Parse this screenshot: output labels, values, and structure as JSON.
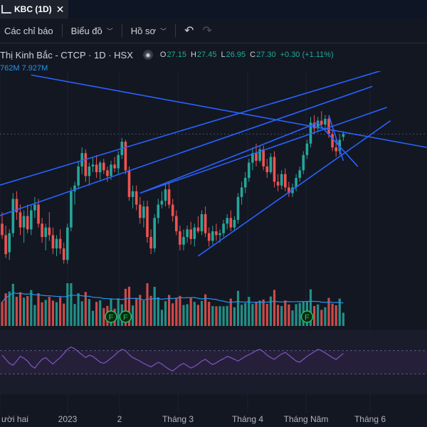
{
  "tab": {
    "title": "KBC (1D)",
    "close_icon": "close-icon"
  },
  "toolbar": {
    "indicators_label": "Các chỉ báo",
    "chart_label": "Biểu đồ",
    "profile_label": "Hồ sơ",
    "undo_icon": "undo-icon",
    "redo_icon": "redo-icon"
  },
  "legend": {
    "symbol": "Thị Kinh Bắc - CTCP · 1D · HSX",
    "o_label": "O",
    "o": "27.15",
    "h_label": "H",
    "h": "27.45",
    "l_label": "L",
    "l": "26.95",
    "c_label": "C",
    "c": "27.30",
    "change": "+0.30 (+1.11%)"
  },
  "volume_legend": {
    "v1": "762M",
    "v2": "7.927M"
  },
  "colors": {
    "background": "#131722",
    "up": "#26a69a",
    "down": "#ef5350",
    "trendline": "#2962ff",
    "rsi": "#7e57c2",
    "volume_ma": "#2196f3"
  },
  "chart_data": {
    "type": "candlestick",
    "symbol": "KBC",
    "x_tick_labels": [
      "ười hai",
      "2023",
      "2",
      "Tháng 3",
      "Tháng 4",
      "Tháng Năm",
      "Tháng 6"
    ],
    "y_range": [
      19.4,
      30.6
    ],
    "candles": [
      {
        "o": 22.6,
        "h": 23.2,
        "l": 21.8,
        "c": 22.0
      },
      {
        "o": 22.0,
        "h": 22.5,
        "l": 20.8,
        "c": 21.0
      },
      {
        "o": 21.1,
        "h": 22.3,
        "l": 20.7,
        "c": 22.1
      },
      {
        "o": 22.1,
        "h": 24.2,
        "l": 21.9,
        "c": 23.9
      },
      {
        "o": 23.9,
        "h": 24.3,
        "l": 22.8,
        "c": 23.2
      },
      {
        "o": 23.2,
        "h": 23.6,
        "l": 22.0,
        "c": 22.4
      },
      {
        "o": 22.4,
        "h": 23.3,
        "l": 21.6,
        "c": 23.0
      },
      {
        "o": 23.0,
        "h": 23.6,
        "l": 22.1,
        "c": 22.3
      },
      {
        "o": 22.3,
        "h": 23.6,
        "l": 22.0,
        "c": 23.3
      },
      {
        "o": 23.3,
        "h": 24.0,
        "l": 22.9,
        "c": 23.6
      },
      {
        "o": 23.6,
        "h": 23.9,
        "l": 22.4,
        "c": 22.6
      },
      {
        "o": 22.6,
        "h": 22.9,
        "l": 21.6,
        "c": 21.9
      },
      {
        "o": 21.9,
        "h": 22.6,
        "l": 21.2,
        "c": 22.4
      },
      {
        "o": 22.4,
        "h": 23.2,
        "l": 21.7,
        "c": 22.0
      },
      {
        "o": 22.0,
        "h": 22.4,
        "l": 21.0,
        "c": 21.3
      },
      {
        "o": 21.3,
        "h": 22.0,
        "l": 20.9,
        "c": 21.8
      },
      {
        "o": 21.8,
        "h": 22.3,
        "l": 21.0,
        "c": 21.3
      },
      {
        "o": 21.3,
        "h": 21.6,
        "l": 20.5,
        "c": 20.7
      },
      {
        "o": 20.7,
        "h": 22.6,
        "l": 20.5,
        "c": 22.4
      },
      {
        "o": 22.4,
        "h": 24.5,
        "l": 22.2,
        "c": 24.3
      },
      {
        "o": 24.3,
        "h": 24.8,
        "l": 23.6,
        "c": 24.6
      },
      {
        "o": 24.6,
        "h": 25.9,
        "l": 24.4,
        "c": 25.6
      },
      {
        "o": 25.6,
        "h": 26.6,
        "l": 25.2,
        "c": 26.3
      },
      {
        "o": 26.3,
        "h": 26.5,
        "l": 24.8,
        "c": 25.1
      },
      {
        "o": 25.1,
        "h": 25.8,
        "l": 24.6,
        "c": 25.6
      },
      {
        "o": 25.6,
        "h": 26.1,
        "l": 25.3,
        "c": 25.7
      },
      {
        "o": 25.7,
        "h": 26.2,
        "l": 25.0,
        "c": 25.3
      },
      {
        "o": 25.3,
        "h": 25.9,
        "l": 24.9,
        "c": 25.8
      },
      {
        "o": 25.8,
        "h": 26.0,
        "l": 25.2,
        "c": 25.4
      },
      {
        "o": 25.4,
        "h": 25.6,
        "l": 24.8,
        "c": 25.1
      },
      {
        "o": 25.1,
        "h": 25.9,
        "l": 24.9,
        "c": 25.7
      },
      {
        "o": 25.7,
        "h": 26.1,
        "l": 25.3,
        "c": 25.5
      },
      {
        "o": 25.5,
        "h": 26.4,
        "l": 25.2,
        "c": 26.2
      },
      {
        "o": 26.2,
        "h": 27.1,
        "l": 26.0,
        "c": 26.9
      },
      {
        "o": 26.9,
        "h": 27.0,
        "l": 25.2,
        "c": 25.4
      },
      {
        "o": 25.4,
        "h": 25.6,
        "l": 23.8,
        "c": 24.0
      },
      {
        "o": 24.0,
        "h": 24.6,
        "l": 23.4,
        "c": 24.3
      },
      {
        "o": 24.3,
        "h": 24.6,
        "l": 23.3,
        "c": 23.6
      },
      {
        "o": 23.6,
        "h": 24.0,
        "l": 22.6,
        "c": 22.9
      },
      {
        "o": 22.9,
        "h": 23.8,
        "l": 22.4,
        "c": 23.5
      },
      {
        "o": 23.5,
        "h": 23.8,
        "l": 21.6,
        "c": 21.9
      },
      {
        "o": 21.9,
        "h": 22.3,
        "l": 21.0,
        "c": 21.3
      },
      {
        "o": 21.3,
        "h": 23.1,
        "l": 21.1,
        "c": 22.9
      },
      {
        "o": 22.9,
        "h": 23.9,
        "l": 22.6,
        "c": 23.6
      },
      {
        "o": 23.6,
        "h": 24.3,
        "l": 23.4,
        "c": 23.8
      },
      {
        "o": 23.8,
        "h": 24.7,
        "l": 23.5,
        "c": 24.4
      },
      {
        "o": 24.4,
        "h": 24.8,
        "l": 23.4,
        "c": 23.6
      },
      {
        "o": 23.6,
        "h": 23.9,
        "l": 22.7,
        "c": 23.0
      },
      {
        "o": 23.0,
        "h": 23.3,
        "l": 22.0,
        "c": 22.2
      },
      {
        "o": 22.2,
        "h": 22.5,
        "l": 21.2,
        "c": 21.5
      },
      {
        "o": 21.5,
        "h": 22.3,
        "l": 21.2,
        "c": 21.9
      },
      {
        "o": 21.9,
        "h": 22.5,
        "l": 21.6,
        "c": 22.3
      },
      {
        "o": 22.3,
        "h": 22.7,
        "l": 21.5,
        "c": 21.8
      },
      {
        "o": 21.8,
        "h": 22.6,
        "l": 21.4,
        "c": 22.4
      },
      {
        "o": 22.4,
        "h": 23.0,
        "l": 22.1,
        "c": 22.2
      },
      {
        "o": 22.2,
        "h": 23.3,
        "l": 22.0,
        "c": 23.1
      },
      {
        "o": 23.1,
        "h": 23.5,
        "l": 21.9,
        "c": 22.1
      },
      {
        "o": 22.1,
        "h": 22.4,
        "l": 21.4,
        "c": 21.7
      },
      {
        "o": 21.7,
        "h": 22.5,
        "l": 21.5,
        "c": 22.2
      },
      {
        "o": 22.2,
        "h": 22.6,
        "l": 21.7,
        "c": 22.0
      },
      {
        "o": 22.0,
        "h": 22.3,
        "l": 21.6,
        "c": 22.1
      },
      {
        "o": 22.1,
        "h": 22.8,
        "l": 21.9,
        "c": 22.6
      },
      {
        "o": 22.6,
        "h": 23.1,
        "l": 22.3,
        "c": 22.9
      },
      {
        "o": 22.9,
        "h": 23.3,
        "l": 22.2,
        "c": 22.4
      },
      {
        "o": 22.4,
        "h": 23.0,
        "l": 22.2,
        "c": 22.8
      },
      {
        "o": 22.8,
        "h": 24.2,
        "l": 22.6,
        "c": 24.0
      },
      {
        "o": 24.0,
        "h": 24.8,
        "l": 23.6,
        "c": 24.5
      },
      {
        "o": 24.5,
        "h": 25.3,
        "l": 24.2,
        "c": 25.0
      },
      {
        "o": 25.0,
        "h": 26.0,
        "l": 24.8,
        "c": 25.8
      },
      {
        "o": 25.8,
        "h": 26.6,
        "l": 25.4,
        "c": 26.3
      },
      {
        "o": 26.3,
        "h": 26.8,
        "l": 25.6,
        "c": 25.9
      },
      {
        "o": 25.9,
        "h": 26.7,
        "l": 25.8,
        "c": 26.5
      },
      {
        "o": 26.5,
        "h": 26.7,
        "l": 25.4,
        "c": 25.6
      },
      {
        "o": 25.6,
        "h": 26.0,
        "l": 25.0,
        "c": 25.3
      },
      {
        "o": 25.3,
        "h": 26.3,
        "l": 25.2,
        "c": 26.1
      },
      {
        "o": 26.1,
        "h": 26.4,
        "l": 24.5,
        "c": 24.8
      },
      {
        "o": 24.8,
        "h": 25.2,
        "l": 24.3,
        "c": 24.6
      },
      {
        "o": 24.6,
        "h": 25.4,
        "l": 24.4,
        "c": 25.2
      },
      {
        "o": 25.2,
        "h": 25.5,
        "l": 24.3,
        "c": 24.5
      },
      {
        "o": 24.5,
        "h": 24.8,
        "l": 24.0,
        "c": 24.2
      },
      {
        "o": 24.2,
        "h": 24.7,
        "l": 24.0,
        "c": 24.5
      },
      {
        "o": 24.5,
        "h": 25.2,
        "l": 24.3,
        "c": 25.0
      },
      {
        "o": 25.0,
        "h": 25.6,
        "l": 24.8,
        "c": 25.4
      },
      {
        "o": 25.4,
        "h": 26.4,
        "l": 25.2,
        "c": 26.2
      },
      {
        "o": 26.2,
        "h": 27.0,
        "l": 26.0,
        "c": 26.8
      },
      {
        "o": 26.8,
        "h": 28.2,
        "l": 26.6,
        "c": 27.9
      },
      {
        "o": 27.9,
        "h": 28.3,
        "l": 27.3,
        "c": 27.6
      },
      {
        "o": 27.6,
        "h": 28.2,
        "l": 27.4,
        "c": 28.0
      },
      {
        "o": 28.0,
        "h": 28.5,
        "l": 27.6,
        "c": 27.8
      },
      {
        "o": 27.8,
        "h": 28.3,
        "l": 27.5,
        "c": 28.1
      },
      {
        "o": 28.1,
        "h": 28.2,
        "l": 27.1,
        "c": 27.3
      },
      {
        "o": 27.3,
        "h": 27.5,
        "l": 26.4,
        "c": 26.6
      },
      {
        "o": 26.6,
        "h": 27.1,
        "l": 26.1,
        "c": 26.4
      },
      {
        "o": 26.4,
        "h": 27.3,
        "l": 26.2,
        "c": 27.0
      },
      {
        "o": 27.15,
        "h": 27.45,
        "l": 26.95,
        "c": 27.3
      }
    ],
    "volume_ma_label": "7.927M",
    "rsi_band": [
      30,
      70
    ],
    "rsi_values": [
      62,
      55,
      48,
      45,
      52,
      60,
      57,
      52,
      44,
      40,
      48,
      55,
      58,
      52,
      47,
      53,
      58,
      65,
      72,
      76,
      73,
      68,
      63,
      58,
      62,
      60,
      55,
      50,
      48,
      52,
      57,
      62,
      68,
      72,
      70,
      63,
      58,
      55,
      52,
      48,
      45,
      42,
      46,
      50,
      47,
      42,
      38,
      35,
      40,
      45,
      48,
      44,
      40,
      43,
      47,
      52,
      55,
      50,
      46,
      49,
      53,
      56,
      60,
      58,
      55,
      52,
      56,
      60,
      63,
      66,
      70,
      72,
      68,
      62,
      58,
      55,
      60,
      64,
      67,
      62,
      57,
      52,
      50,
      55,
      60,
      64,
      68,
      72,
      70,
      66,
      62,
      58,
      55,
      60,
      65
    ]
  }
}
